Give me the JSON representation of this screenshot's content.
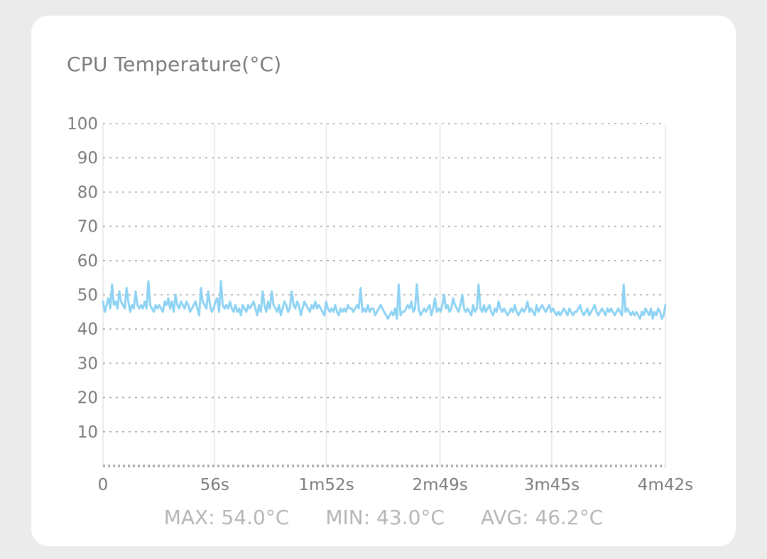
{
  "card": {
    "title": "CPU Temperature(°C)"
  },
  "stats": {
    "max": "MAX: 54.0°C",
    "min": "MIN: 43.0°C",
    "avg": "AVG: 46.2°C"
  },
  "chart_data": {
    "type": "line",
    "line_color": "#8fd3f4",
    "grid": true,
    "ylim": [
      0,
      100
    ],
    "yticks": [
      10,
      20,
      30,
      40,
      50,
      60,
      70,
      80,
      90,
      100
    ],
    "xlim": [
      0,
      282
    ],
    "xticks": [
      {
        "value": 0,
        "label": "0"
      },
      {
        "value": 56,
        "label": "56s"
      },
      {
        "value": 112,
        "label": "1m52s"
      },
      {
        "value": 169,
        "label": "2m49s"
      },
      {
        "value": 225,
        "label": "3m45s"
      },
      {
        "value": 282,
        "label": "4m42s"
      }
    ],
    "series": [
      {
        "values": [
          48,
          45,
          47,
          49,
          46,
          53,
          47,
          48,
          46,
          51,
          48,
          47,
          46,
          52,
          48,
          45,
          47,
          46,
          51,
          47,
          46,
          47,
          46,
          48,
          46,
          54,
          47,
          46,
          45,
          47,
          46,
          47,
          46,
          45,
          48,
          47,
          49,
          46,
          48,
          45,
          50,
          47,
          46,
          48,
          47,
          46,
          48,
          47,
          45,
          46,
          47,
          48,
          46,
          44,
          52,
          48,
          47,
          46,
          51,
          47,
          45,
          46,
          48,
          49,
          45,
          54,
          47,
          46,
          47,
          46,
          48,
          46,
          45,
          47,
          45,
          46,
          44,
          47,
          46,
          45,
          47,
          46,
          47,
          48,
          46,
          44,
          47,
          45,
          51,
          47,
          45,
          48,
          46,
          51,
          47,
          46,
          45,
          47,
          44,
          46,
          48,
          47,
          45,
          46,
          51,
          47,
          46,
          48,
          47,
          44,
          46,
          48,
          47,
          46,
          45,
          47,
          46,
          48,
          46,
          47,
          46,
          45,
          44,
          48,
          46,
          45,
          46,
          45,
          47,
          45,
          44,
          46,
          45,
          46,
          45,
          47,
          46,
          46,
          45,
          46,
          47,
          46,
          52,
          45,
          46,
          45,
          47,
          45,
          46,
          46,
          44,
          45,
          46,
          47,
          46,
          45,
          44,
          43,
          44,
          45,
          44,
          46,
          43,
          53,
          44,
          45,
          45,
          46,
          47,
          46,
          48,
          45,
          46,
          53,
          46,
          44,
          45,
          46,
          45,
          46,
          47,
          44,
          46,
          49,
          45,
          46,
          45,
          47,
          50,
          46,
          47,
          45,
          46,
          49,
          47,
          46,
          45,
          47,
          50,
          46,
          45,
          46,
          45,
          44,
          47,
          45,
          46,
          53,
          46,
          45,
          47,
          45,
          46,
          47,
          45,
          44,
          46,
          45,
          48,
          46,
          45,
          46,
          45,
          44,
          45,
          46,
          45,
          47,
          45,
          44,
          45,
          46,
          45,
          46,
          48,
          45,
          46,
          45,
          44,
          47,
          45,
          46,
          47,
          46,
          45,
          46,
          47,
          45,
          46,
          45,
          44,
          45,
          44,
          45,
          46,
          45,
          44,
          46,
          45,
          44,
          45,
          45,
          46,
          47,
          45,
          44,
          45,
          46,
          44,
          45,
          46,
          47,
          45,
          44,
          45,
          46,
          45,
          44,
          46,
          45,
          46,
          45,
          44,
          45,
          46,
          45,
          44,
          53,
          45,
          46,
          45,
          44,
          45,
          44,
          45,
          44,
          43,
          45,
          44,
          46,
          45,
          44,
          46,
          43,
          45,
          44,
          46,
          45,
          43,
          44,
          47
        ]
      }
    ]
  }
}
